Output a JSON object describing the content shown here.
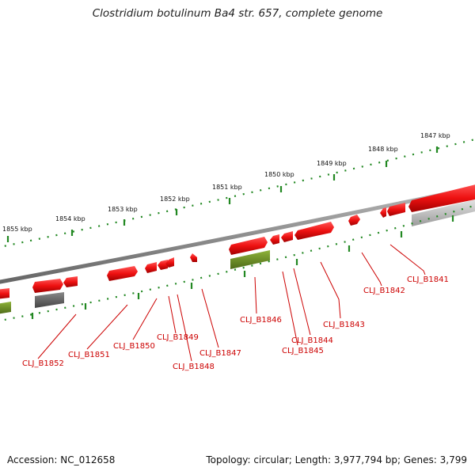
{
  "title": "Clostridium botulinum Ba4 str. 657, complete genome",
  "footer": {
    "accession": "Accession: NC_012658",
    "summary": "Topology: circular; Length: 3,977,794 bp; Genes: 3,799"
  },
  "kbp_labels": [
    "1855 kbp",
    "1854 kbp",
    "1853 kbp",
    "1852 kbp",
    "1851 kbp",
    "1850 kbp",
    "1849 kbp",
    "1848 kbp",
    "1847 kbp"
  ],
  "gene_labels": [
    "CLJ_B1852",
    "CLJ_B1851",
    "CLJ_B1850",
    "CLJ_B1849",
    "CLJ_B1848",
    "CLJ_B1847",
    "CLJ_B1846",
    "CLJ_B1845",
    "CLJ_B1844",
    "CLJ_B1843",
    "CLJ_B1842",
    "CLJ_B1841"
  ],
  "colors": {
    "gene_fill": "#ee1111",
    "gene_shade": "#aa0000",
    "rna_fill": "#6b8f22",
    "other_fill": "#666666",
    "backbone": "#7a7a7a",
    "tick": "#228822",
    "label": "#cc0000"
  }
}
